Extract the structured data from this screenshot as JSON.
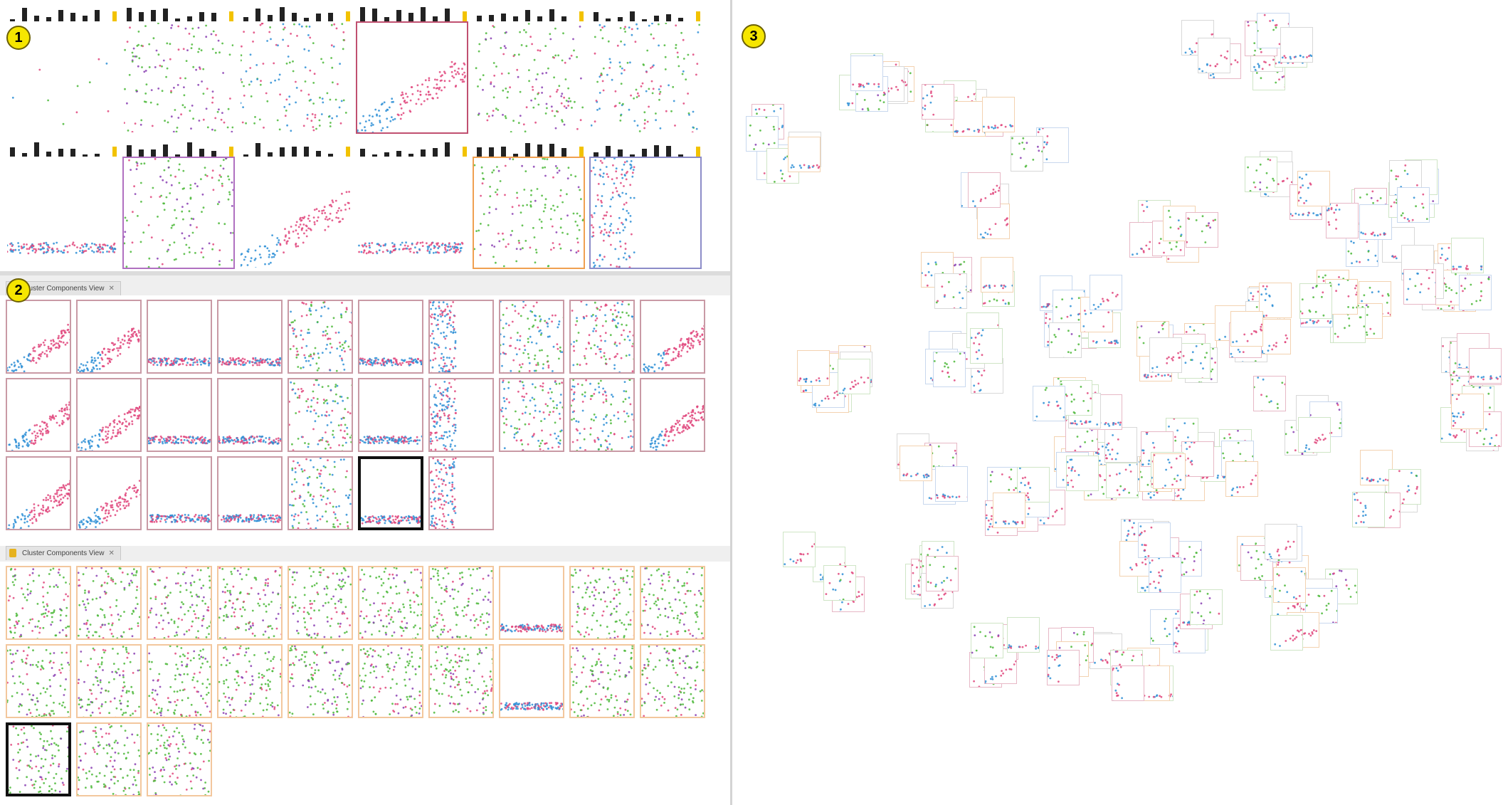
{
  "badges": {
    "overview": "1",
    "components": "2",
    "layout": "3"
  },
  "panels": {
    "cluster_components_top": {
      "title": "Cluster Components View",
      "close": "✕"
    },
    "cluster_components_bottom": {
      "title": "Cluster Components View",
      "close": "✕"
    }
  },
  "icons": {
    "panel_icon": "view-icon",
    "close_icon": "close-icon"
  },
  "colors": {
    "pink": "#e0467d",
    "blue": "#2e8fd6",
    "green": "#4cb83a",
    "purple": "#8a3fb3",
    "frame_pink": "#c99aa5",
    "frame_orange": "#f3c79d",
    "frame_purple": "#8c8cc8",
    "selected": "#111111",
    "badge": "#f6e600"
  }
}
